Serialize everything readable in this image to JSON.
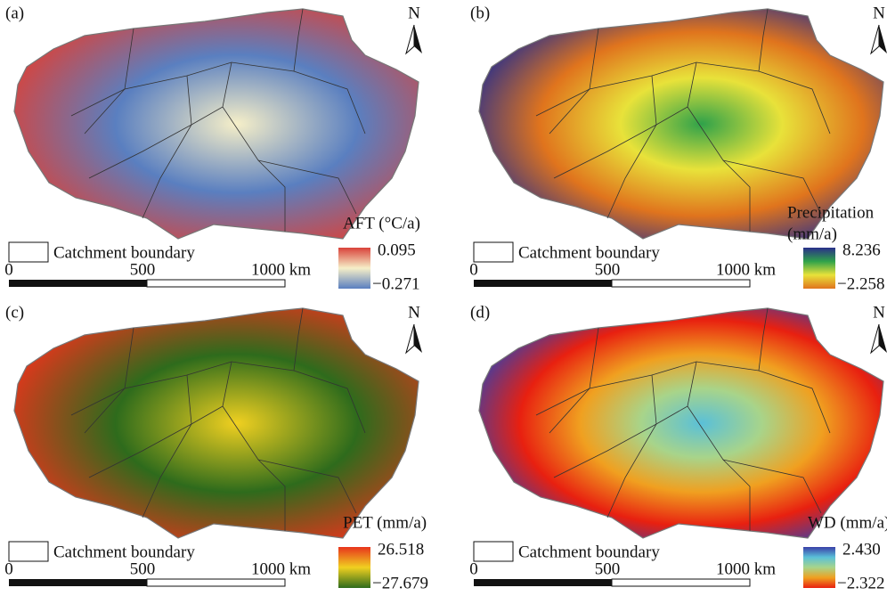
{
  "panels": [
    {
      "label": "(a)",
      "north": "N",
      "legend_title": [
        "AFT (°C/a)"
      ],
      "legend_max": "0.095",
      "legend_min": "−0.271",
      "colorbar": [
        "#d9423a",
        "#f6efc8",
        "#5a7fc0"
      ]
    },
    {
      "label": "(b)",
      "north": "N",
      "legend_title": [
        "Precipitation",
        "(mm/a)"
      ],
      "legend_max": "8.236",
      "legend_min": "−2.258",
      "colorbar": [
        "#2a2f8a",
        "#2fa24a",
        "#e8e23a",
        "#e0741d"
      ]
    },
    {
      "label": "(c)",
      "north": "N",
      "legend_title": [
        "PET (mm/a)"
      ],
      "legend_max": "26.518",
      "legend_min": "−27.679",
      "colorbar": [
        "#e8341c",
        "#f0d020",
        "#2e6b1c"
      ]
    },
    {
      "label": "(d)",
      "north": "N",
      "legend_title": [
        "WD (mm/a)"
      ],
      "legend_max": "2.430",
      "legend_min": "−2.322",
      "colorbar": [
        "#3a3fa8",
        "#5ac0d8",
        "#a8d48a",
        "#f0a020",
        "#e82010"
      ]
    }
  ],
  "legend": "Catchment boundary",
  "scale_bar": [
    "0",
    "500",
    "1000 km"
  ]
}
